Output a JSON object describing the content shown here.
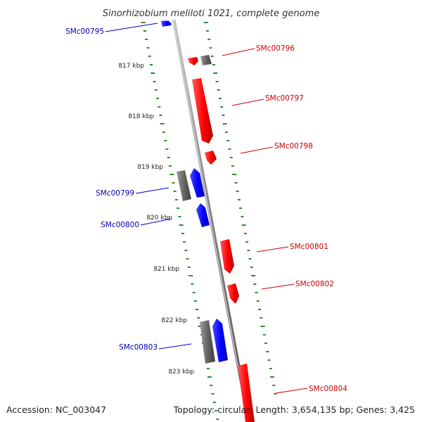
{
  "title": "Sinorhizobium meliloti 1021, complete genome",
  "accession_text": "Accession: NC_003047",
  "summary_text": "Topology: circular; Length: 3,654,135 bp; Genes: 3,425",
  "colors": {
    "forward_gene": "#ff0000",
    "reverse_gene": "#0000ff",
    "pseudo_block": "#666666",
    "backbone": "#888888",
    "tick_green": "#2e8b2e",
    "forward_label": "#cc0000",
    "reverse_label": "#0000aa"
  },
  "kbp_labels": [
    "817 kbp",
    "818 kbp",
    "819 kbp",
    "820 kbp",
    "821 kbp",
    "822 kbp",
    "823 kbp"
  ],
  "genes": [
    {
      "id": "SMc00795",
      "strand": "reverse"
    },
    {
      "id": "SMc00796",
      "strand": "forward"
    },
    {
      "id": "SMc00797",
      "strand": "forward"
    },
    {
      "id": "SMc00798",
      "strand": "forward"
    },
    {
      "id": "SMc00799",
      "strand": "reverse"
    },
    {
      "id": "SMc00800",
      "strand": "reverse"
    },
    {
      "id": "SMc00801",
      "strand": "forward"
    },
    {
      "id": "SMc00802",
      "strand": "forward"
    },
    {
      "id": "SMc00803",
      "strand": "reverse"
    },
    {
      "id": "SMc00804",
      "strand": "forward"
    }
  ]
}
